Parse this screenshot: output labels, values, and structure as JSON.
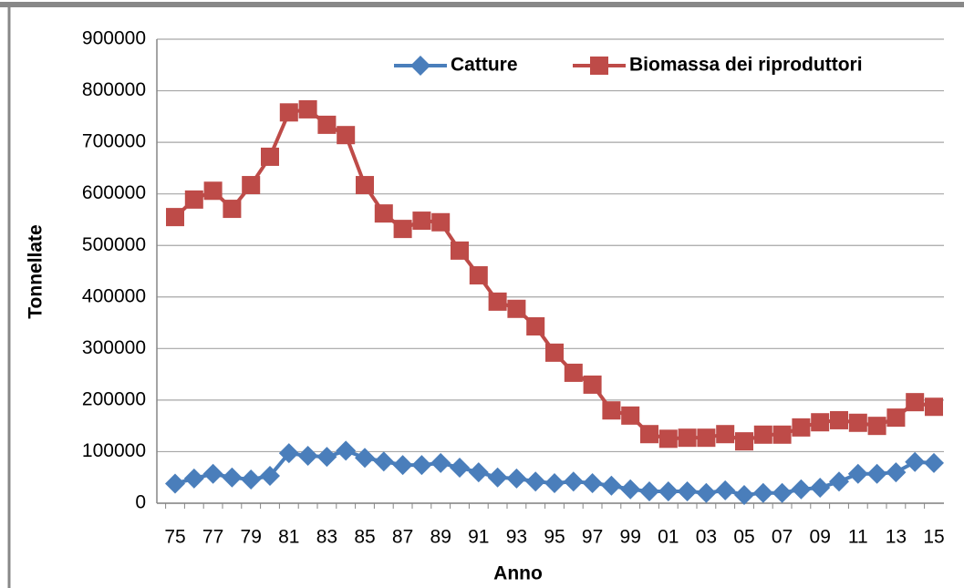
{
  "chart_data": {
    "type": "line",
    "categories": [
      "75",
      null,
      "77",
      null,
      "79",
      null,
      "81",
      null,
      "83",
      null,
      "85",
      null,
      "87",
      null,
      "89",
      null,
      "91",
      null,
      "93",
      null,
      "95",
      null,
      "97",
      null,
      "99",
      null,
      "01",
      null,
      "03",
      null,
      "05",
      null,
      "07",
      null,
      "09",
      null,
      "11",
      null,
      "13",
      null,
      "15"
    ],
    "series": [
      {
        "name": "Catture",
        "color": "#4a7ebb",
        "marker": "diamond",
        "values": [
          38000,
          48000,
          57000,
          50000,
          46000,
          53000,
          97000,
          92000,
          90000,
          102000,
          88000,
          81000,
          74000,
          74000,
          78000,
          69000,
          60000,
          50000,
          48000,
          42000,
          39000,
          42000,
          39000,
          34000,
          27000,
          23000,
          23000,
          23000,
          20000,
          25000,
          16000,
          20000,
          20000,
          27000,
          30000,
          42000,
          57000,
          57000,
          60000,
          80000,
          78000
        ]
      },
      {
        "name": "Biomassa dei riproduttori",
        "color": "#be4b48",
        "marker": "square",
        "values": [
          555000,
          589000,
          606000,
          571000,
          617000,
          672000,
          758000,
          764000,
          734000,
          714000,
          617000,
          562000,
          532000,
          548000,
          545000,
          490000,
          442000,
          391000,
          377000,
          343000,
          292000,
          253000,
          230000,
          180000,
          170000,
          134000,
          125000,
          127000,
          127000,
          134000,
          120000,
          133000,
          133000,
          147000,
          157000,
          161000,
          156000,
          150000,
          166000,
          196000,
          187000
        ]
      }
    ],
    "ylim": [
      0,
      900000
    ],
    "yticks": [
      0,
      100000,
      200000,
      300000,
      400000,
      500000,
      600000,
      700000,
      800000,
      900000
    ],
    "ylabel": "Tonnellate",
    "xlabel": "Anno",
    "grid": true,
    "legend": "top-right"
  }
}
